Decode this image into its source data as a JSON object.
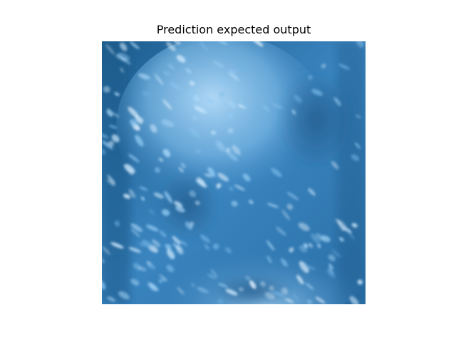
{
  "figure": {
    "title": "Prediction expected output",
    "colors": {
      "deep_blue": "#1f5f8f",
      "mid_blue": "#3b86c0",
      "light_blue": "#8ec8f2",
      "highlight": "#cfeaff",
      "dark_edge": "#174a72"
    }
  }
}
